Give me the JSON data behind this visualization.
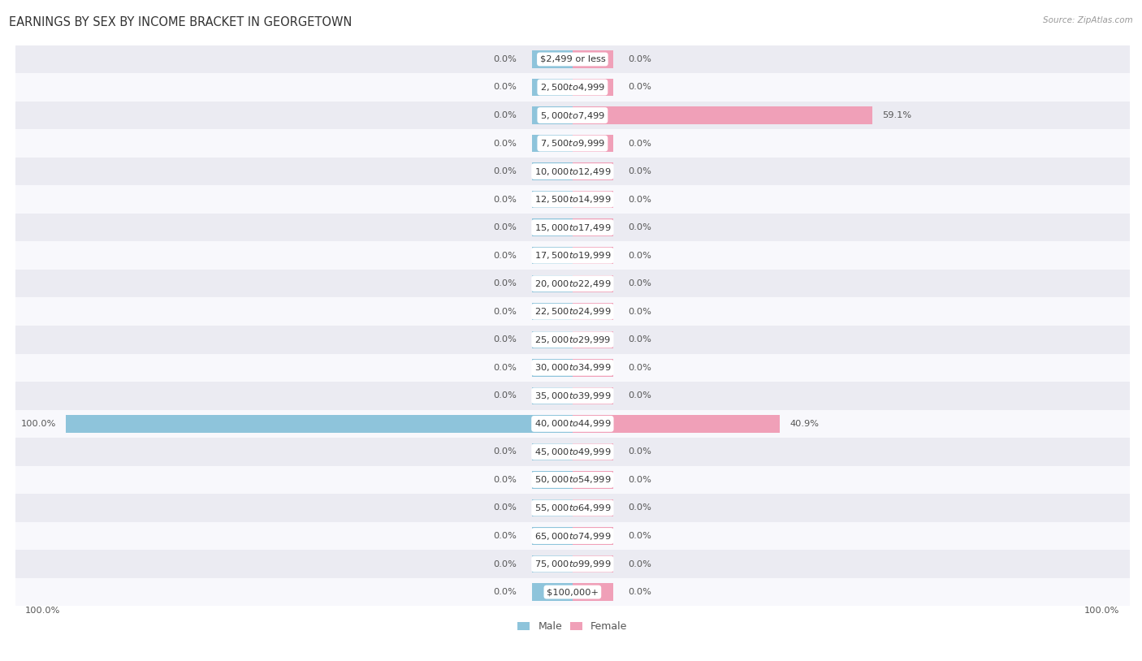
{
  "title": "EARNINGS BY SEX BY INCOME BRACKET IN GEORGETOWN",
  "source": "Source: ZipAtlas.com",
  "categories": [
    "$2,499 or less",
    "$2,500 to $4,999",
    "$5,000 to $7,499",
    "$7,500 to $9,999",
    "$10,000 to $12,499",
    "$12,500 to $14,999",
    "$15,000 to $17,499",
    "$17,500 to $19,999",
    "$20,000 to $22,499",
    "$22,500 to $24,999",
    "$25,000 to $29,999",
    "$30,000 to $34,999",
    "$35,000 to $39,999",
    "$40,000 to $44,999",
    "$45,000 to $49,999",
    "$50,000 to $54,999",
    "$55,000 to $64,999",
    "$65,000 to $74,999",
    "$75,000 to $99,999",
    "$100,000+"
  ],
  "male_values": [
    0.0,
    0.0,
    0.0,
    0.0,
    0.0,
    0.0,
    0.0,
    0.0,
    0.0,
    0.0,
    0.0,
    0.0,
    0.0,
    100.0,
    0.0,
    0.0,
    0.0,
    0.0,
    0.0,
    0.0
  ],
  "female_values": [
    0.0,
    0.0,
    59.1,
    0.0,
    0.0,
    0.0,
    0.0,
    0.0,
    0.0,
    0.0,
    0.0,
    0.0,
    0.0,
    40.9,
    0.0,
    0.0,
    0.0,
    0.0,
    0.0,
    0.0
  ],
  "male_color": "#8ec4db",
  "female_color": "#f0a0b8",
  "male_color_stub": "#a8cfe0",
  "female_color_stub": "#f5b8c8",
  "male_label": "Male",
  "female_label": "Female",
  "bg_row_light": "#ebebf2",
  "bg_row_white": "#f8f8fc",
  "bar_max": 100.0,
  "stub_size": 8.0,
  "title_fontsize": 10.5,
  "label_fontsize": 8.2,
  "category_fontsize": 8.2,
  "source_fontsize": 7.5
}
